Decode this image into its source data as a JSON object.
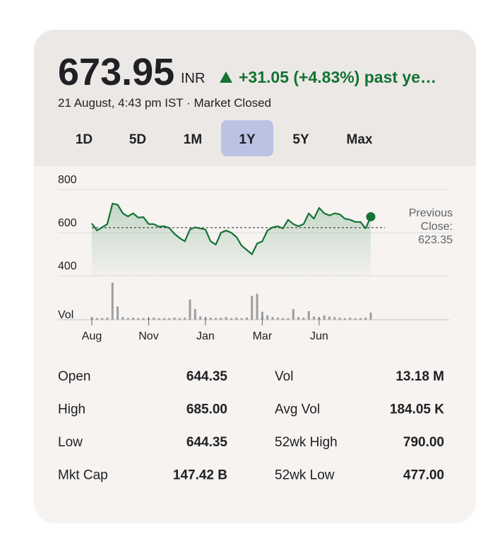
{
  "header": {
    "price": 673.95,
    "currency": "INR",
    "change": "+31.05 (+4.83%) past ye…",
    "timestamp": "21 August, 4:43 pm IST · Market Closed"
  },
  "ranges": {
    "options": [
      "1D",
      "5D",
      "1M",
      "1Y",
      "5Y",
      "Max"
    ],
    "selected": "1Y"
  },
  "chart_data": {
    "type": "line",
    "color": "#137333",
    "values": [
      643,
      610,
      625,
      640,
      735,
      730,
      690,
      675,
      690,
      670,
      672,
      640,
      640,
      628,
      630,
      622,
      595,
      575,
      560,
      615,
      625,
      620,
      615,
      560,
      545,
      600,
      610,
      600,
      580,
      540,
      520,
      500,
      550,
      560,
      610,
      625,
      630,
      620,
      660,
      640,
      630,
      640,
      690,
      665,
      715,
      690,
      680,
      690,
      685,
      665,
      660,
      650,
      650,
      620,
      673.95
    ],
    "xlim": [
      0,
      54
    ],
    "xticks": [
      {
        "value": 0,
        "label": "Aug"
      },
      {
        "value": 11,
        "label": "Nov"
      },
      {
        "value": 22,
        "label": "Jan"
      },
      {
        "value": 33,
        "label": "Mar"
      },
      {
        "value": 44,
        "label": "Jun"
      }
    ],
    "ylim": [
      400,
      800
    ],
    "yticks": [
      800,
      600,
      400
    ],
    "grid": true,
    "previous_close_label": "Previous Close:",
    "previous_close": 623.35,
    "volume_label": "Vol",
    "volume_color": "#9e9e9e",
    "volume": [
      4,
      3,
      3,
      4,
      70,
      25,
      5,
      3,
      4,
      3,
      3,
      3,
      4,
      3,
      3,
      3,
      4,
      3,
      4,
      38,
      20,
      6,
      4,
      4,
      3,
      4,
      5,
      3,
      4,
      3,
      4,
      45,
      49,
      15,
      8,
      5,
      4,
      3,
      3,
      20,
      5,
      4,
      16,
      6,
      4,
      8,
      6,
      5,
      4,
      3,
      4,
      3,
      3,
      4,
      13.18
    ],
    "volume_lim": [
      0,
      80
    ]
  },
  "stats": {
    "rows": [
      [
        "Open",
        "644.35",
        "Vol",
        "13.18 M"
      ],
      [
        "High",
        "685.00",
        "Avg Vol",
        "184.05 K"
      ],
      [
        "Low",
        "644.35",
        "52wk High",
        "790.00"
      ],
      [
        "Mkt Cap",
        "147.42 B",
        "52wk Low",
        "477.00"
      ]
    ]
  }
}
